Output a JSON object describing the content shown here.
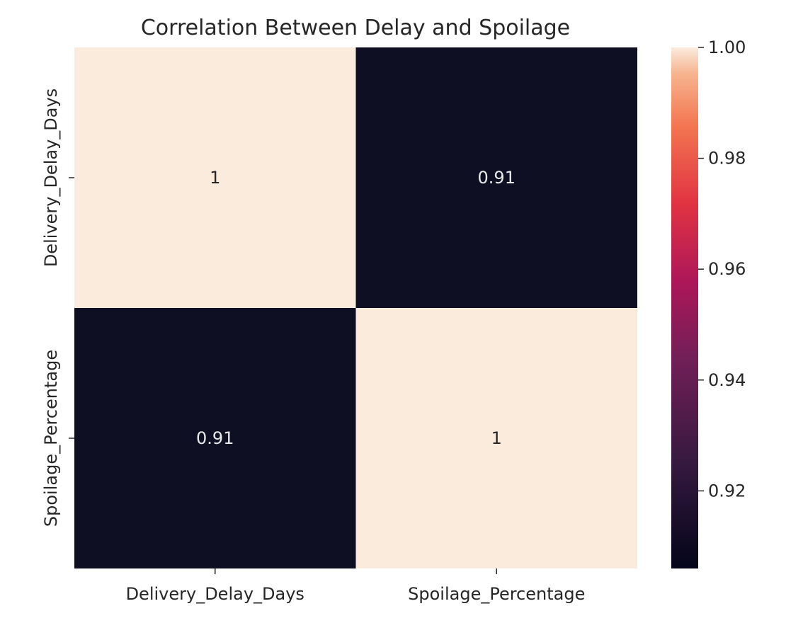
{
  "chart_data": {
    "type": "heatmap",
    "title": "Correlation Between Delay and Spoilage",
    "x_labels": [
      "Delivery_Delay_Days",
      "Spoilage_Percentage"
    ],
    "y_labels": [
      "Delivery_Delay_Days",
      "Spoilage_Percentage"
    ],
    "values": [
      [
        1.0,
        0.91
      ],
      [
        0.91,
        1.0
      ]
    ],
    "annotations": [
      [
        "1",
        "0.91"
      ],
      [
        "0.91",
        "1"
      ]
    ],
    "colorbar": {
      "range": [
        0.906,
        1.0
      ],
      "ticks": [
        0.92,
        0.94,
        0.96,
        0.98,
        1.0
      ],
      "tick_labels": [
        "0.92",
        "0.94",
        "0.96",
        "0.98",
        "1.00"
      ],
      "colormap": "rocket"
    },
    "colors": {
      "low": "#03051a",
      "high": "#faebdd",
      "annotation_on_dark": "#eaeaea",
      "annotation_on_light": "#262626"
    },
    "grid": false,
    "legend": "colorbar-right"
  }
}
